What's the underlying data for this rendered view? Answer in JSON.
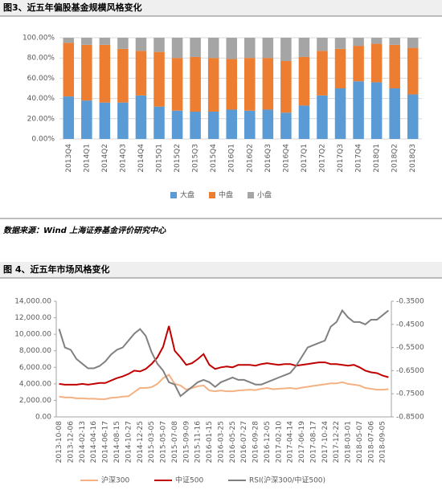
{
  "chart_data": [
    {
      "type": "bar",
      "title": "图3、近五年偏股基金规模风格变化",
      "stacked": true,
      "categories": [
        "2013Q4",
        "2014Q1",
        "2014Q2",
        "2014Q3",
        "2014Q4",
        "2015Q1",
        "2015Q2",
        "2015Q3",
        "2015Q4",
        "2016Q1",
        "2016Q2",
        "2016Q3",
        "2016Q4",
        "2017Q1",
        "2017Q2",
        "2017Q3",
        "2017Q4",
        "2018Q1",
        "2018Q2",
        "2018Q3"
      ],
      "series": [
        {
          "name": "大盘",
          "color": "#5b9bd5",
          "values": [
            42,
            38,
            36,
            36,
            43,
            32,
            28,
            27,
            27,
            29,
            28,
            29,
            26,
            33,
            43,
            50,
            57,
            56,
            50,
            44
          ]
        },
        {
          "name": "中盘",
          "color": "#ed7d31",
          "values": [
            53,
            55,
            57,
            53,
            44,
            54,
            52,
            54,
            53,
            50,
            52,
            51,
            51,
            48,
            44,
            39,
            35,
            38,
            43,
            46
          ]
        },
        {
          "name": "小盘",
          "color": "#a5a5a5",
          "values": [
            5,
            7,
            7,
            11,
            13,
            14,
            20,
            19,
            20,
            21,
            20,
            20,
            23,
            19,
            13,
            11,
            8,
            6,
            7,
            10
          ]
        }
      ],
      "ylim": [
        0,
        100
      ],
      "yticks": [
        {
          "value": 0,
          "label": "0.00%"
        },
        {
          "value": 20,
          "label": "20.00%"
        },
        {
          "value": 40,
          "label": "40.00%"
        },
        {
          "value": 60,
          "label": "60.00%"
        },
        {
          "value": 80,
          "label": "80.00%"
        },
        {
          "value": 100,
          "label": "100.00%"
        }
      ],
      "grid": true,
      "legend": "bottom"
    },
    {
      "type": "line",
      "title": "图 4、近五年市场风格变化",
      "x": [
        "2013-10-08",
        null,
        "2013-12-06",
        null,
        "2014-02-13",
        null,
        "2014-04-16",
        null,
        "2014-06-17",
        null,
        "2014-08-15",
        null,
        "2014-10-27",
        null,
        "2014-12-25",
        null,
        "2015-03-05",
        null,
        "2015-05-07",
        null,
        "2015-07-08",
        null,
        "2015-09-09",
        null,
        "2015-11-16",
        null,
        "2016-01-15",
        null,
        "2016-03-25",
        null,
        "2016-05-25",
        null,
        "2016-07-27",
        null,
        "2016-09-28",
        null,
        "2016-12-05",
        null,
        "2017-02-10",
        null,
        "2017-04-14",
        null,
        "2017-06-19",
        null,
        "2017-08-17",
        null,
        "2017-10-24",
        null,
        "2017-12-22",
        null,
        "2018-03-01",
        null,
        "2018-05-07",
        null,
        "2018-07-06",
        null,
        "2018-09-05",
        null
      ],
      "series": [
        {
          "name": "沪深300",
          "color": "#f4b183",
          "values": [
            2450,
            2350,
            2350,
            2250,
            2250,
            2200,
            2200,
            2150,
            2150,
            2300,
            2350,
            2450,
            2500,
            3000,
            3500,
            3500,
            3600,
            4000,
            4700,
            5100,
            4000,
            3800,
            3300,
            3500,
            3700,
            3800,
            3200,
            3100,
            3200,
            3100,
            3100,
            3200,
            3250,
            3300,
            3250,
            3400,
            3500,
            3350,
            3400,
            3450,
            3500,
            3400,
            3550,
            3650,
            3750,
            3850,
            3950,
            4050,
            4050,
            4200,
            4000,
            3900,
            3800,
            3500,
            3400,
            3300,
            3300,
            3350
          ]
        },
        {
          "name": "中证500",
          "color": "#c00000",
          "values": [
            4000,
            3900,
            3900,
            3900,
            4000,
            3900,
            4000,
            4100,
            4100,
            4400,
            4700,
            4900,
            5200,
            5600,
            5500,
            5800,
            6400,
            7200,
            8500,
            11000,
            8000,
            7200,
            6300,
            6500,
            7000,
            7600,
            6300,
            5800,
            6000,
            6100,
            6000,
            6300,
            6300,
            6300,
            6200,
            6400,
            6500,
            6400,
            6300,
            6400,
            6400,
            6200,
            6300,
            6400,
            6500,
            6600,
            6600,
            6400,
            6400,
            6300,
            6200,
            6300,
            6000,
            5600,
            5400,
            5300,
            5000,
            4800
          ]
        },
        {
          "name": "RSI(沪深300/中证500)",
          "color": "#808080",
          "axis": "y2",
          "values": [
            -0.47,
            -0.55,
            -0.56,
            -0.6,
            -0.62,
            -0.64,
            -0.64,
            -0.63,
            -0.61,
            -0.58,
            -0.56,
            -0.55,
            -0.52,
            -0.49,
            -0.47,
            -0.5,
            -0.57,
            -0.62,
            -0.65,
            -0.7,
            -0.71,
            -0.76,
            -0.74,
            -0.72,
            -0.7,
            -0.69,
            -0.7,
            -0.72,
            -0.7,
            -0.69,
            -0.68,
            -0.69,
            -0.69,
            -0.7,
            -0.71,
            -0.71,
            -0.7,
            -0.69,
            -0.68,
            -0.67,
            -0.66,
            -0.63,
            -0.59,
            -0.55,
            -0.54,
            -0.53,
            -0.52,
            -0.46,
            -0.44,
            -0.39,
            -0.42,
            -0.44,
            -0.44,
            -0.45,
            -0.43,
            -0.43,
            -0.41,
            -0.39
          ]
        }
      ],
      "ylim": [
        0,
        14000
      ],
      "yticks": [
        {
          "value": 0,
          "label": "0.00"
        },
        {
          "value": 2000,
          "label": "2,000.00"
        },
        {
          "value": 4000,
          "label": "4,000.00"
        },
        {
          "value": 6000,
          "label": "6,000.00"
        },
        {
          "value": 8000,
          "label": "8,000.00"
        },
        {
          "value": 10000,
          "label": "10,000.00"
        },
        {
          "value": 12000,
          "label": "12,000.00"
        },
        {
          "value": 14000,
          "label": "14,000.00"
        }
      ],
      "y2lim": [
        -0.85,
        -0.35
      ],
      "y2ticks": [
        {
          "value": -0.85,
          "label": "-0.8500"
        },
        {
          "value": -0.75,
          "label": "-0.7500"
        },
        {
          "value": -0.65,
          "label": "-0.6500"
        },
        {
          "value": -0.55,
          "label": "-0.5500"
        },
        {
          "value": -0.45,
          "label": "-0.4500"
        },
        {
          "value": -0.35,
          "label": "-0.3500"
        }
      ],
      "grid": false,
      "legend": "bottom"
    }
  ],
  "source": "数据来源：Wind 上海证券基金评价研究中心"
}
